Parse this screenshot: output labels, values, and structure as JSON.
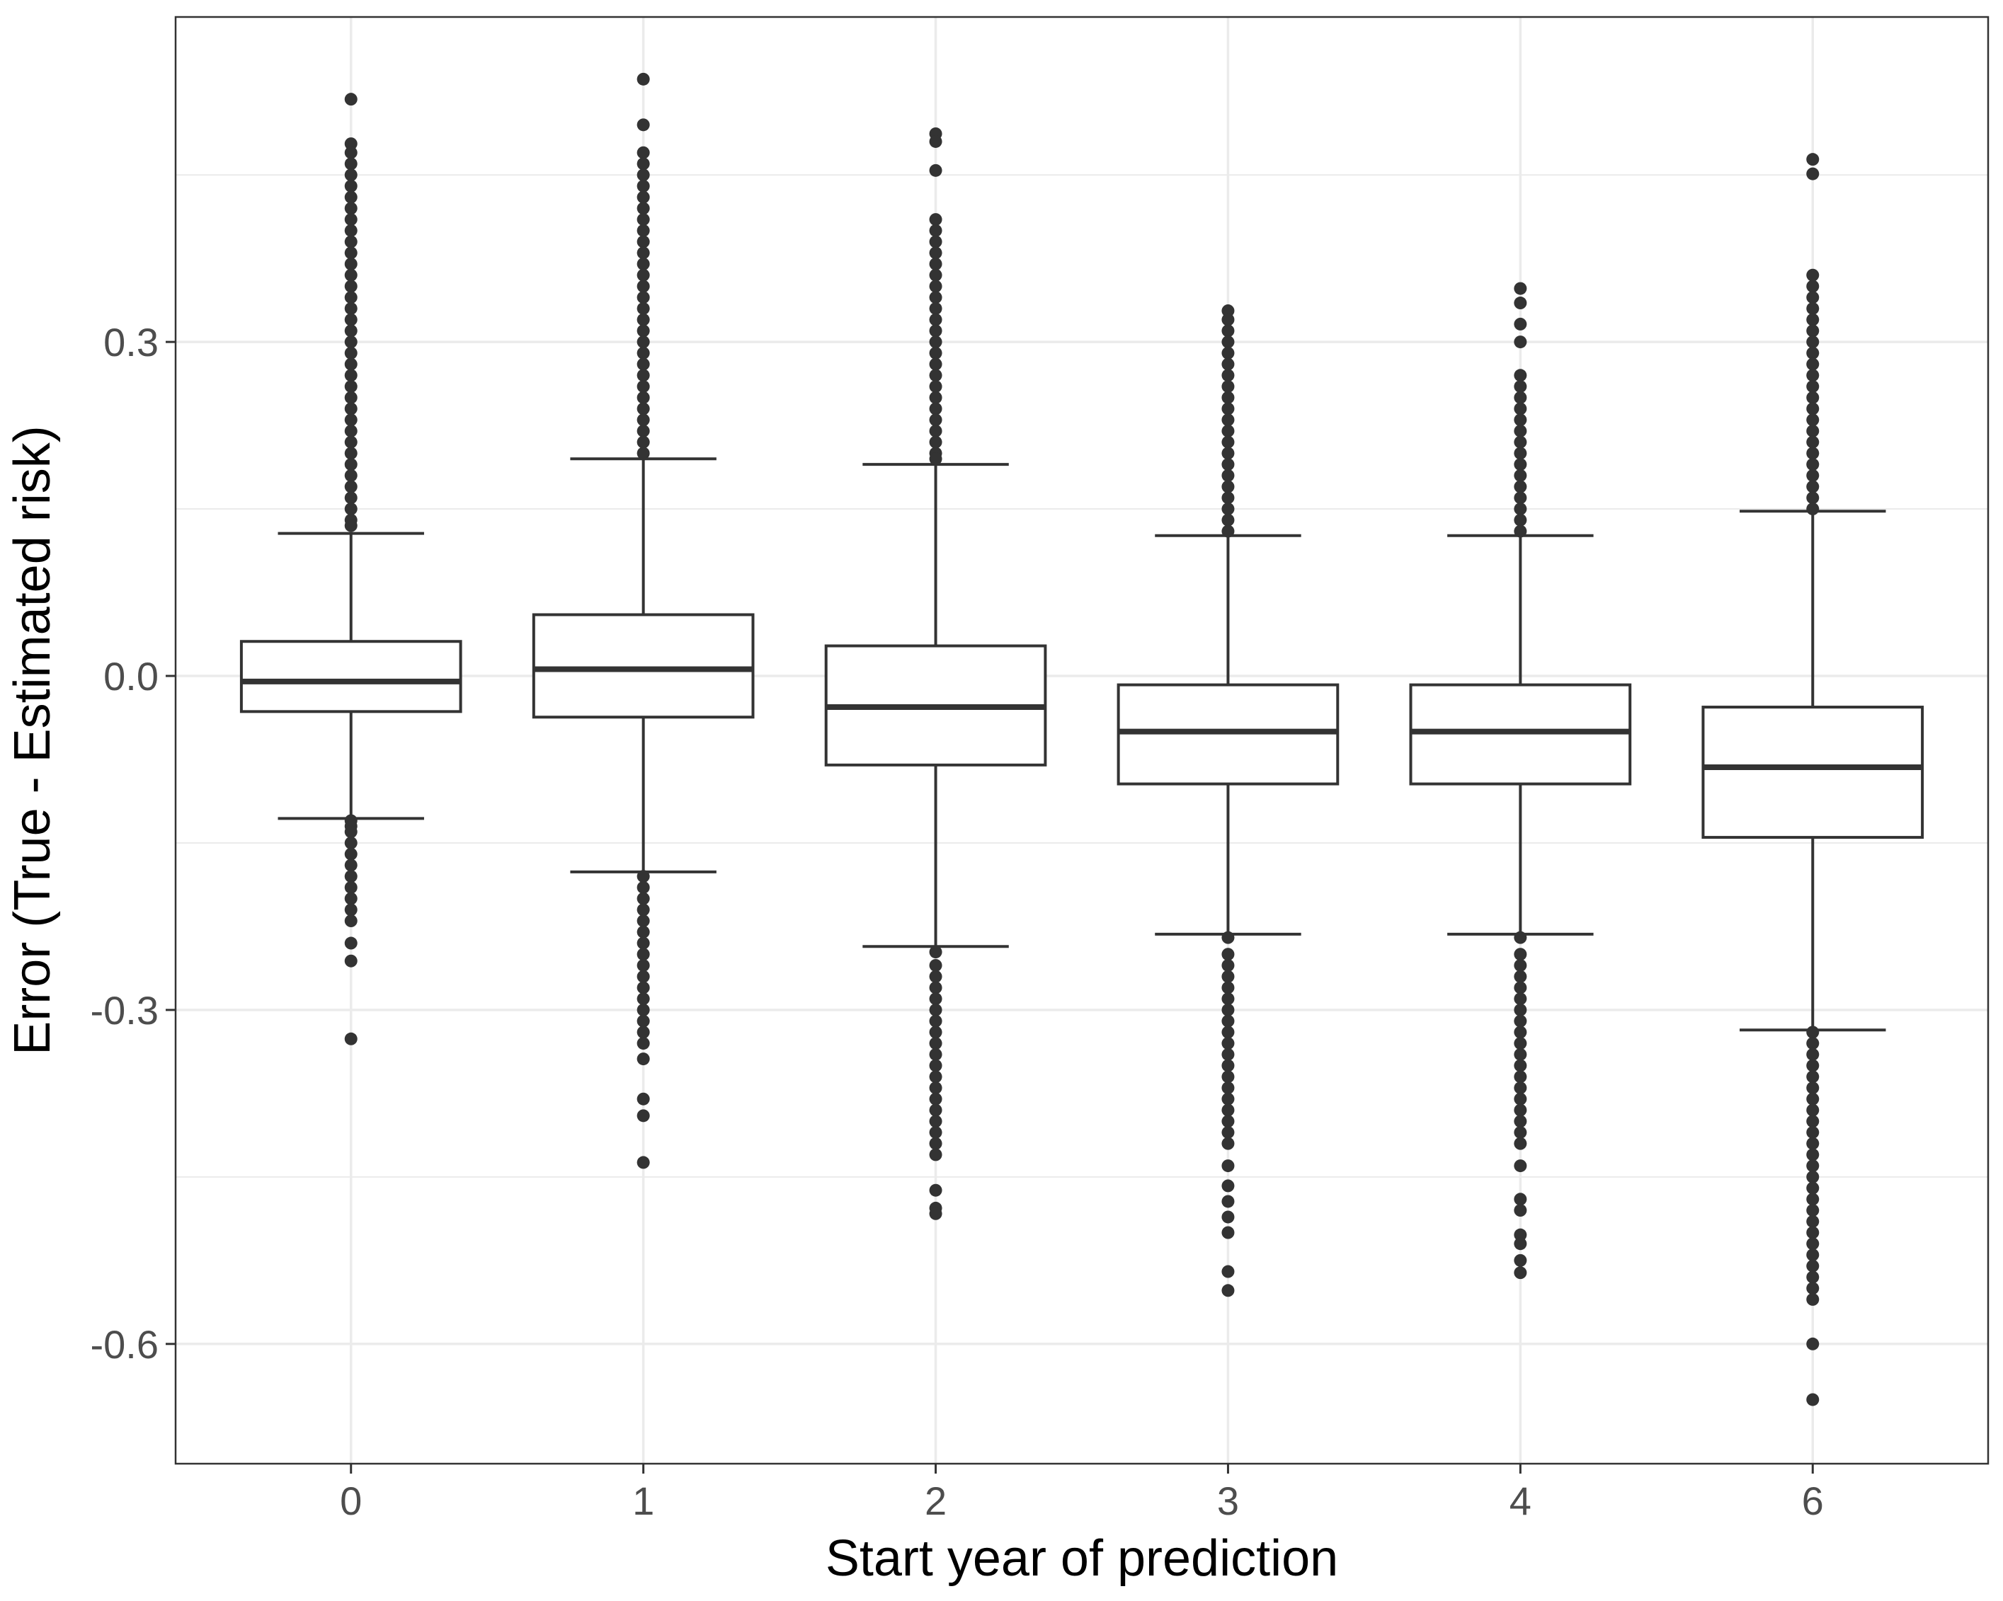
{
  "chart_data": {
    "type": "boxplot",
    "title": "",
    "xlabel": "Start year of prediction",
    "ylabel": "Error (True - Estimated risk)",
    "categories": [
      "0",
      "1",
      "2",
      "3",
      "4",
      "6"
    ],
    "ylim": [
      -0.7,
      0.6
    ],
    "yticks": [
      0.3,
      0.0,
      -0.3,
      -0.6
    ],
    "ytick_labels": [
      "0.3",
      "0.0",
      "-0.3",
      "-0.6"
    ],
    "grid": true,
    "boxes": [
      {
        "category": "0",
        "q1": -0.032,
        "median": -0.005,
        "q3": 0.031,
        "whisker_low": -0.128,
        "whisker_high": 0.128,
        "outliers": [
          0.518,
          0.478,
          0.47,
          0.46,
          0.45,
          0.44,
          0.43,
          0.42,
          0.41,
          0.4,
          0.39,
          0.38,
          0.37,
          0.36,
          0.35,
          0.34,
          0.33,
          0.32,
          0.31,
          0.3,
          0.29,
          0.28,
          0.27,
          0.26,
          0.25,
          0.24,
          0.23,
          0.22,
          0.21,
          0.2,
          0.19,
          0.18,
          0.17,
          0.16,
          0.15,
          0.14,
          0.135,
          -0.13,
          -0.135,
          -0.14,
          -0.15,
          -0.16,
          -0.17,
          -0.18,
          -0.19,
          -0.2,
          -0.21,
          -0.22,
          -0.24,
          -0.256,
          -0.326
        ]
      },
      {
        "category": "1",
        "q1": -0.037,
        "median": 0.006,
        "q3": 0.055,
        "whisker_low": -0.176,
        "whisker_high": 0.195,
        "outliers": [
          0.536,
          0.495,
          0.47,
          0.46,
          0.45,
          0.44,
          0.43,
          0.42,
          0.41,
          0.4,
          0.39,
          0.38,
          0.37,
          0.36,
          0.35,
          0.34,
          0.33,
          0.32,
          0.31,
          0.3,
          0.29,
          0.28,
          0.27,
          0.26,
          0.25,
          0.24,
          0.23,
          0.22,
          0.21,
          0.2,
          -0.18,
          -0.19,
          -0.2,
          -0.21,
          -0.22,
          -0.23,
          -0.24,
          -0.25,
          -0.26,
          -0.27,
          -0.28,
          -0.29,
          -0.3,
          -0.31,
          -0.32,
          -0.33,
          -0.344,
          -0.38,
          -0.395,
          -0.437
        ]
      },
      {
        "category": "2",
        "q1": -0.08,
        "median": -0.028,
        "q3": 0.027,
        "whisker_low": -0.243,
        "whisker_high": 0.19,
        "outliers": [
          0.487,
          0.48,
          0.454,
          0.41,
          0.4,
          0.39,
          0.38,
          0.37,
          0.36,
          0.35,
          0.34,
          0.33,
          0.32,
          0.31,
          0.3,
          0.29,
          0.28,
          0.27,
          0.26,
          0.25,
          0.24,
          0.23,
          0.22,
          0.21,
          0.2,
          0.195,
          -0.248,
          -0.26,
          -0.27,
          -0.28,
          -0.29,
          -0.3,
          -0.31,
          -0.32,
          -0.33,
          -0.34,
          -0.35,
          -0.36,
          -0.37,
          -0.38,
          -0.39,
          -0.4,
          -0.41,
          -0.42,
          -0.43,
          -0.462,
          -0.478,
          -0.483
        ]
      },
      {
        "category": "3",
        "q1": -0.097,
        "median": -0.05,
        "q3": -0.008,
        "whisker_low": -0.232,
        "whisker_high": 0.126,
        "outliers": [
          0.328,
          0.32,
          0.31,
          0.3,
          0.29,
          0.28,
          0.27,
          0.26,
          0.25,
          0.24,
          0.23,
          0.22,
          0.21,
          0.2,
          0.19,
          0.18,
          0.17,
          0.16,
          0.15,
          0.14,
          0.13,
          -0.235,
          -0.25,
          -0.26,
          -0.27,
          -0.28,
          -0.29,
          -0.3,
          -0.31,
          -0.32,
          -0.33,
          -0.34,
          -0.35,
          -0.36,
          -0.37,
          -0.38,
          -0.39,
          -0.4,
          -0.41,
          -0.42,
          -0.44,
          -0.458,
          -0.472,
          -0.486,
          -0.5,
          -0.535,
          -0.552
        ]
      },
      {
        "category": "4",
        "q1": -0.097,
        "median": -0.05,
        "q3": -0.008,
        "whisker_low": -0.232,
        "whisker_high": 0.126,
        "outliers": [
          0.348,
          0.335,
          0.316,
          0.3,
          0.27,
          0.26,
          0.25,
          0.24,
          0.23,
          0.22,
          0.21,
          0.2,
          0.19,
          0.18,
          0.17,
          0.16,
          0.15,
          0.14,
          0.13,
          -0.235,
          -0.25,
          -0.26,
          -0.27,
          -0.28,
          -0.29,
          -0.3,
          -0.31,
          -0.32,
          -0.33,
          -0.34,
          -0.35,
          -0.36,
          -0.37,
          -0.38,
          -0.39,
          -0.4,
          -0.41,
          -0.42,
          -0.44,
          -0.47,
          -0.48,
          -0.502,
          -0.51,
          -0.525,
          -0.536
        ]
      },
      {
        "category": "6",
        "q1": -0.145,
        "median": -0.082,
        "q3": -0.028,
        "whisker_low": -0.318,
        "whisker_high": 0.148,
        "outliers": [
          0.464,
          0.451,
          0.36,
          0.35,
          0.34,
          0.33,
          0.32,
          0.31,
          0.3,
          0.29,
          0.28,
          0.27,
          0.26,
          0.25,
          0.24,
          0.23,
          0.22,
          0.21,
          0.2,
          0.19,
          0.18,
          0.17,
          0.16,
          0.15,
          -0.32,
          -0.33,
          -0.34,
          -0.35,
          -0.36,
          -0.37,
          -0.38,
          -0.39,
          -0.4,
          -0.41,
          -0.42,
          -0.43,
          -0.44,
          -0.45,
          -0.46,
          -0.47,
          -0.48,
          -0.49,
          -0.5,
          -0.51,
          -0.52,
          -0.53,
          -0.54,
          -0.55,
          -0.56,
          -0.6,
          -0.65
        ]
      }
    ],
    "colors": {
      "box_stroke": "#333333",
      "box_fill": "#ffffff",
      "grid": "#ebebeb",
      "panel_border": "#333333",
      "tick_text": "#4d4d4d"
    }
  }
}
